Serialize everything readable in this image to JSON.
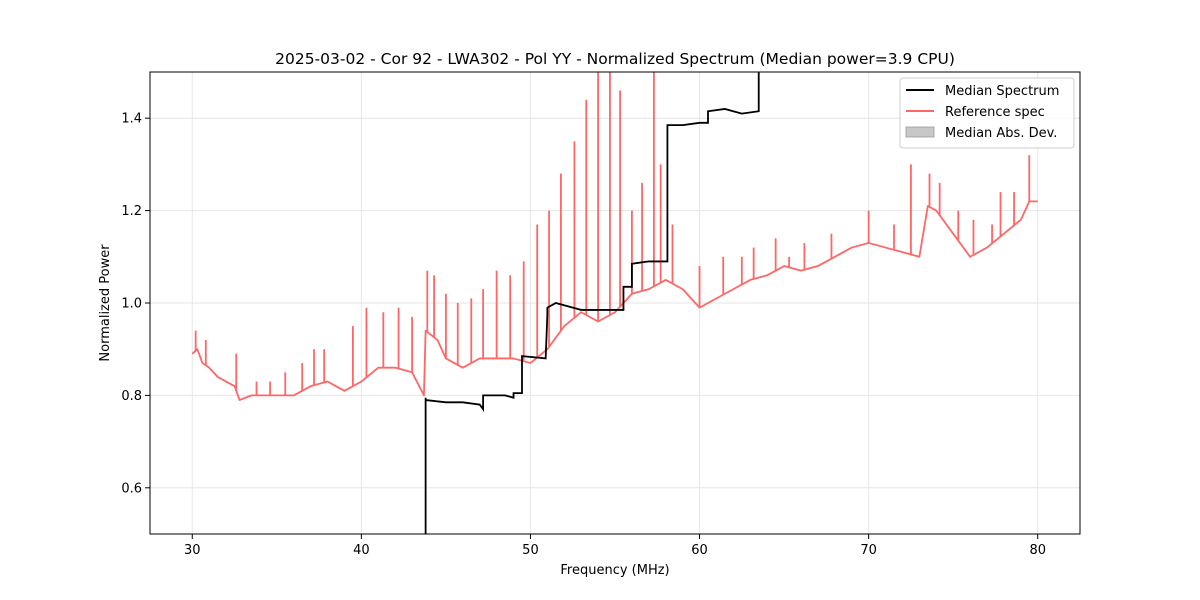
{
  "chart_data": {
    "type": "line",
    "title": "2025-03-02 - Cor 92 - LWA302 - Pol YY - Normalized Spectrum (Median power=3.9 CPU)",
    "xlabel": "Frequency (MHz)",
    "ylabel": "Normalized Power",
    "xlim": [
      27.5,
      82.5
    ],
    "ylim": [
      0.5,
      1.5
    ],
    "xticks": [
      30,
      40,
      50,
      60,
      70,
      80
    ],
    "xtick_labels": [
      "30",
      "40",
      "50",
      "60",
      "70",
      "80"
    ],
    "yticks": [
      0.6,
      0.8,
      1.0,
      1.2,
      1.4
    ],
    "ytick_labels": [
      "0.6",
      "0.8",
      "1.0",
      "1.2",
      "1.4"
    ],
    "grid": true,
    "legend_position": "top-right",
    "legend": [
      "Median Spectrum",
      "Reference spec",
      "Median Abs. Dev."
    ],
    "colors": {
      "median": "#000000",
      "reference": "#ff6666",
      "mad_fill": "#c8c8c8",
      "grid": "#e6e6e6"
    },
    "series": [
      {
        "name": "Median Spectrum",
        "x": [
          43.8,
          43.8,
          43.8,
          45.0,
          46.0,
          47.0,
          47.2,
          47.2,
          48.5,
          49.0,
          49.0,
          49.5,
          49.5,
          50.9,
          50.9,
          51.0,
          51.0,
          51.5,
          52.5,
          53.0,
          54.0,
          55.0,
          55.5,
          55.5,
          56.0,
          56.0,
          57.0,
          57.9,
          58.1,
          58.1,
          59.0,
          60.0,
          60.5,
          60.5,
          61.5,
          62.5,
          63.5,
          63.5
        ],
        "y": [
          0.5,
          0.795,
          0.79,
          0.785,
          0.785,
          0.78,
          0.77,
          0.8,
          0.8,
          0.795,
          0.805,
          0.805,
          0.885,
          0.88,
          0.88,
          0.975,
          0.99,
          1.0,
          0.99,
          0.985,
          0.985,
          0.985,
          0.985,
          1.035,
          1.035,
          1.085,
          1.09,
          1.09,
          1.09,
          1.385,
          1.385,
          1.39,
          1.39,
          1.415,
          1.42,
          1.41,
          1.415,
          1.5
        ]
      },
      {
        "name": "Reference spec",
        "x": [
          30.0,
          30.3,
          30.6,
          31.0,
          31.5,
          32.0,
          32.5,
          32.8,
          33.5,
          34.0,
          35.0,
          36.0,
          37.0,
          38.0,
          39.0,
          40.0,
          41.0,
          42.0,
          43.0,
          43.7,
          43.8,
          44.5,
          45.0,
          46.0,
          47.0,
          48.0,
          49.0,
          50.0,
          51.0,
          52.0,
          53.0,
          54.0,
          55.0,
          56.0,
          57.0,
          58.0,
          59.0,
          60.0,
          61.0,
          62.0,
          63.0,
          64.0,
          65.0,
          66.0,
          67.0,
          68.0,
          69.0,
          70.0,
          71.0,
          72.0,
          73.0,
          73.5,
          74.0,
          75.0,
          76.0,
          77.0,
          78.0,
          79.0,
          79.5,
          80.0
        ],
        "y": [
          0.89,
          0.9,
          0.87,
          0.86,
          0.84,
          0.83,
          0.82,
          0.79,
          0.8,
          0.8,
          0.8,
          0.8,
          0.82,
          0.83,
          0.81,
          0.83,
          0.86,
          0.86,
          0.85,
          0.8,
          0.94,
          0.92,
          0.88,
          0.86,
          0.88,
          0.88,
          0.88,
          0.87,
          0.9,
          0.95,
          0.98,
          0.96,
          0.98,
          1.02,
          1.03,
          1.05,
          1.03,
          0.99,
          1.01,
          1.03,
          1.05,
          1.06,
          1.08,
          1.07,
          1.08,
          1.1,
          1.12,
          1.13,
          1.12,
          1.11,
          1.1,
          1.21,
          1.2,
          1.15,
          1.1,
          1.12,
          1.15,
          1.18,
          1.22,
          1.22
        ]
      }
    ],
    "reference_spikes": [
      {
        "x": 30.2,
        "y": 0.94
      },
      {
        "x": 30.8,
        "y": 0.92
      },
      {
        "x": 32.6,
        "y": 0.89
      },
      {
        "x": 33.8,
        "y": 0.83
      },
      {
        "x": 34.6,
        "y": 0.83
      },
      {
        "x": 35.5,
        "y": 0.85
      },
      {
        "x": 36.5,
        "y": 0.87
      },
      {
        "x": 37.2,
        "y": 0.9
      },
      {
        "x": 37.8,
        "y": 0.9
      },
      {
        "x": 39.5,
        "y": 0.95
      },
      {
        "x": 40.3,
        "y": 0.99
      },
      {
        "x": 41.3,
        "y": 0.98
      },
      {
        "x": 42.2,
        "y": 0.99
      },
      {
        "x": 43.0,
        "y": 0.97
      },
      {
        "x": 43.9,
        "y": 1.07
      },
      {
        "x": 44.3,
        "y": 1.06
      },
      {
        "x": 45.0,
        "y": 1.02
      },
      {
        "x": 45.7,
        "y": 1.0
      },
      {
        "x": 46.5,
        "y": 1.01
      },
      {
        "x": 47.2,
        "y": 1.03
      },
      {
        "x": 48.0,
        "y": 1.07
      },
      {
        "x": 48.8,
        "y": 1.06
      },
      {
        "x": 49.6,
        "y": 1.09
      },
      {
        "x": 50.4,
        "y": 1.17
      },
      {
        "x": 51.1,
        "y": 1.2
      },
      {
        "x": 51.8,
        "y": 1.28
      },
      {
        "x": 52.6,
        "y": 1.35
      },
      {
        "x": 53.3,
        "y": 1.44
      },
      {
        "x": 54.0,
        "y": 1.5
      },
      {
        "x": 54.7,
        "y": 1.5
      },
      {
        "x": 55.3,
        "y": 1.46
      },
      {
        "x": 56.0,
        "y": 1.2
      },
      {
        "x": 56.6,
        "y": 1.26
      },
      {
        "x": 57.3,
        "y": 1.5
      },
      {
        "x": 57.7,
        "y": 1.3
      },
      {
        "x": 58.4,
        "y": 1.17
      },
      {
        "x": 60.0,
        "y": 1.08
      },
      {
        "x": 61.4,
        "y": 1.1
      },
      {
        "x": 62.5,
        "y": 1.1
      },
      {
        "x": 63.2,
        "y": 1.12
      },
      {
        "x": 64.5,
        "y": 1.14
      },
      {
        "x": 65.3,
        "y": 1.1
      },
      {
        "x": 66.2,
        "y": 1.13
      },
      {
        "x": 67.8,
        "y": 1.15
      },
      {
        "x": 70.0,
        "y": 1.2
      },
      {
        "x": 71.5,
        "y": 1.17
      },
      {
        "x": 72.5,
        "y": 1.3
      },
      {
        "x": 73.6,
        "y": 1.28
      },
      {
        "x": 74.2,
        "y": 1.26
      },
      {
        "x": 75.3,
        "y": 1.2
      },
      {
        "x": 76.2,
        "y": 1.18
      },
      {
        "x": 77.3,
        "y": 1.17
      },
      {
        "x": 77.8,
        "y": 1.24
      },
      {
        "x": 78.6,
        "y": 1.24
      },
      {
        "x": 79.5,
        "y": 1.32
      }
    ]
  }
}
